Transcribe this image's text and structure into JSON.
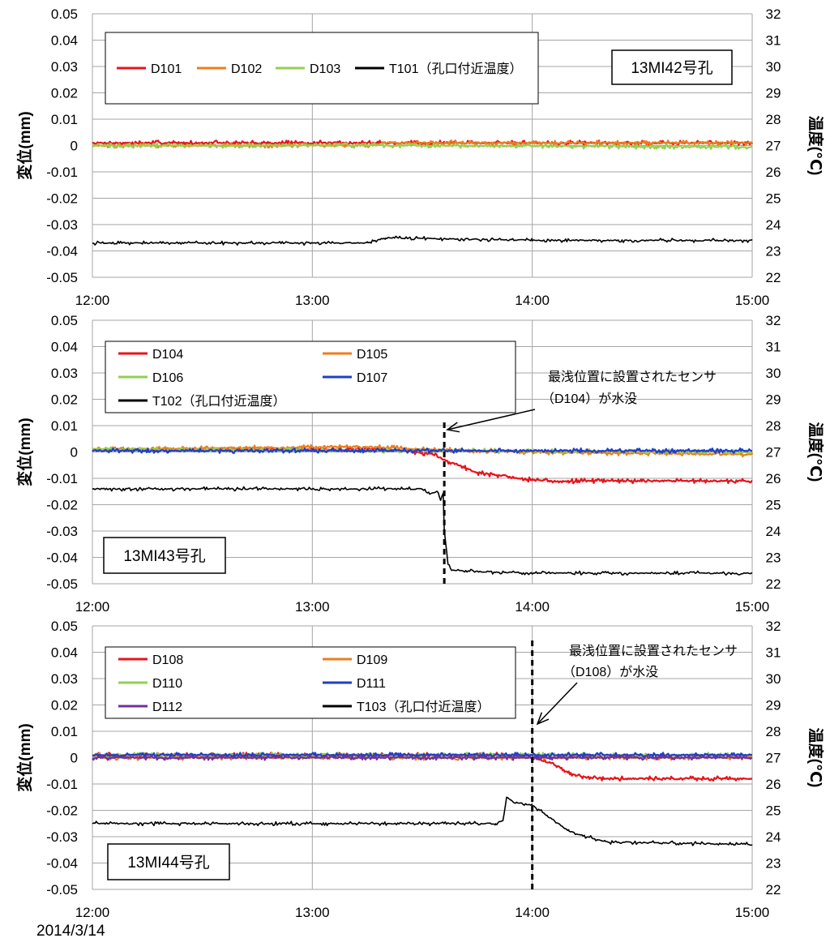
{
  "footer_date": "2014/3/14",
  "colors": {
    "red": "#e8141b",
    "orange": "#ed7d1f",
    "green": "#92d050",
    "blue": "#1f3fc9",
    "purple": "#7030a0",
    "black": "#000000",
    "grid": "#a6a6a6"
  },
  "chart_data": [
    {
      "type": "line",
      "title": "13MI42号孔",
      "ylabel": "変位(mm)",
      "y2label": "温度(℃)",
      "xlim": [
        "12:00",
        "15:00"
      ],
      "xticks": [
        "12:00",
        "13:00",
        "14:00",
        "15:00"
      ],
      "ylim": [
        -0.05,
        0.05
      ],
      "yticks": [
        "0.05",
        "0.04",
        "0.03",
        "0.02",
        "0.01",
        "0",
        "-0.01",
        "-0.02",
        "-0.03",
        "-0.04",
        "-0.05"
      ],
      "y2lim": [
        22,
        32
      ],
      "y2ticks": [
        "32",
        "31",
        "30",
        "29",
        "28",
        "27",
        "26",
        "25",
        "24",
        "23",
        "22"
      ],
      "grid": true,
      "legend_position": "top-left",
      "series": [
        {
          "name": "D101",
          "axis": "left",
          "color": "red",
          "points": [
            [
              "12:00",
              0.001
            ],
            [
              "13:20",
              0.001
            ],
            [
              "15:00",
              0.001
            ]
          ]
        },
        {
          "name": "D102",
          "axis": "left",
          "color": "orange",
          "points": [
            [
              "12:00",
              0.0
            ],
            [
              "13:15",
              0.0
            ],
            [
              "13:20",
              0.001
            ],
            [
              "15:00",
              0.001
            ]
          ]
        },
        {
          "name": "D103",
          "axis": "left",
          "color": "green",
          "points": [
            [
              "12:00",
              0.0
            ],
            [
              "13:20",
              0.0
            ],
            [
              "15:00",
              -0.0005
            ]
          ]
        },
        {
          "name": "T101（孔口付近温度）",
          "axis": "right",
          "color": "black",
          "points": [
            [
              "12:00",
              23.3
            ],
            [
              "13:15",
              23.3
            ],
            [
              "13:20",
              23.5
            ],
            [
              "14:00",
              23.4
            ],
            [
              "15:00",
              23.4
            ]
          ]
        }
      ]
    },
    {
      "type": "line",
      "title": "13MI43号孔",
      "ylabel": "変位(mm)",
      "y2label": "温度(℃)",
      "xlim": [
        "12:00",
        "15:00"
      ],
      "xticks": [
        "12:00",
        "13:00",
        "14:00",
        "15:00"
      ],
      "ylim": [
        -0.05,
        0.05
      ],
      "yticks": [
        "0.05",
        "0.04",
        "0.03",
        "0.02",
        "0.01",
        "0",
        "-0.01",
        "-0.02",
        "-0.03",
        "-0.04",
        "-0.05"
      ],
      "y2lim": [
        22,
        32
      ],
      "y2ticks": [
        "32",
        "31",
        "30",
        "29",
        "28",
        "27",
        "26",
        "25",
        "24",
        "23",
        "22"
      ],
      "grid": true,
      "legend_position": "top-left",
      "annotation": {
        "text": "最浅位置に設置されたセンサ（D104）が水没",
        "time": "13:36"
      },
      "series": [
        {
          "name": "D104",
          "axis": "left",
          "color": "red",
          "points": [
            [
              "12:00",
              0.001
            ],
            [
              "13:20",
              0.001
            ],
            [
              "13:28",
              0.0
            ],
            [
              "13:33",
              -0.001
            ],
            [
              "13:36",
              -0.003
            ],
            [
              "13:40",
              -0.005
            ],
            [
              "13:45",
              -0.008
            ],
            [
              "13:53",
              -0.009
            ],
            [
              "13:55",
              -0.01
            ],
            [
              "14:05",
              -0.011
            ],
            [
              "15:00",
              -0.011
            ]
          ]
        },
        {
          "name": "D105",
          "axis": "left",
          "color": "orange",
          "points": [
            [
              "12:00",
              0.001
            ],
            [
              "13:15",
              0.002
            ],
            [
              "13:30",
              0.001
            ],
            [
              "14:00",
              0.0
            ],
            [
              "15:00",
              -0.001
            ]
          ]
        },
        {
          "name": "D106",
          "axis": "left",
          "color": "green",
          "points": [
            [
              "12:00",
              0.001
            ],
            [
              "15:00",
              0.0
            ]
          ]
        },
        {
          "name": "D107",
          "axis": "left",
          "color": "blue",
          "points": [
            [
              "12:00",
              0.0005
            ],
            [
              "15:00",
              0.0005
            ]
          ]
        },
        {
          "name": "T102（孔口付近温度）",
          "axis": "right",
          "color": "black",
          "points": [
            [
              "12:00",
              25.6
            ],
            [
              "13:30",
              25.6
            ],
            [
              "13:32",
              25.4
            ],
            [
              "13:34",
              25.5
            ],
            [
              "13:35",
              25.2
            ],
            [
              "13:36",
              25.5
            ],
            [
              "13:36",
              24.0
            ],
            [
              "13:37",
              22.8
            ],
            [
              "13:38",
              22.5
            ],
            [
              "14:00",
              22.4
            ],
            [
              "15:00",
              22.4
            ]
          ]
        }
      ]
    },
    {
      "type": "line",
      "title": "13MI44号孔",
      "ylabel": "変位(mm)",
      "y2label": "温度(℃)",
      "xlim": [
        "12:00",
        "15:00"
      ],
      "xticks": [
        "12:00",
        "13:00",
        "14:00",
        "15:00"
      ],
      "ylim": [
        -0.05,
        0.05
      ],
      "yticks": [
        "0.05",
        "0.04",
        "0.03",
        "0.02",
        "0.01",
        "0",
        "-0.01",
        "-0.02",
        "-0.03",
        "-0.04",
        "-0.05"
      ],
      "y2lim": [
        22,
        32
      ],
      "y2ticks": [
        "32",
        "31",
        "30",
        "29",
        "28",
        "27",
        "26",
        "25",
        "24",
        "23",
        "22"
      ],
      "grid": true,
      "legend_position": "top-left",
      "annotation": {
        "text": "最浅位置に設置されたセンサ（D108）が水没",
        "time": "14:00"
      },
      "series": [
        {
          "name": "D108",
          "axis": "left",
          "color": "red",
          "points": [
            [
              "12:00",
              0.001
            ],
            [
              "13:58",
              0.001
            ],
            [
              "14:00",
              0.0
            ],
            [
              "14:05",
              -0.002
            ],
            [
              "14:08",
              -0.004
            ],
            [
              "14:12",
              -0.007
            ],
            [
              "14:20",
              -0.008
            ],
            [
              "15:00",
              -0.008
            ]
          ]
        },
        {
          "name": "D109",
          "axis": "left",
          "color": "orange",
          "points": [
            [
              "12:00",
              0.0
            ],
            [
              "15:00",
              0.0
            ]
          ]
        },
        {
          "name": "D110",
          "axis": "left",
          "color": "green",
          "points": [
            [
              "12:00",
              0.001
            ],
            [
              "15:00",
              0.001
            ]
          ]
        },
        {
          "name": "D111",
          "axis": "left",
          "color": "blue",
          "points": [
            [
              "12:00",
              0.001
            ],
            [
              "15:00",
              0.001
            ]
          ]
        },
        {
          "name": "D112",
          "axis": "left",
          "color": "purple",
          "points": [
            [
              "12:00",
              0.0
            ],
            [
              "15:00",
              0.0
            ]
          ]
        },
        {
          "name": "T103（孔口付近温度）",
          "axis": "right",
          "color": "black",
          "points": [
            [
              "12:00",
              24.5
            ],
            [
              "13:50",
              24.5
            ],
            [
              "13:52",
              24.6
            ],
            [
              "13:53",
              25.5
            ],
            [
              "13:55",
              25.3
            ],
            [
              "14:00",
              25.2
            ],
            [
              "14:04",
              24.8
            ],
            [
              "14:10",
              24.2
            ],
            [
              "14:20",
              23.8
            ],
            [
              "15:00",
              23.7
            ]
          ]
        }
      ]
    }
  ]
}
